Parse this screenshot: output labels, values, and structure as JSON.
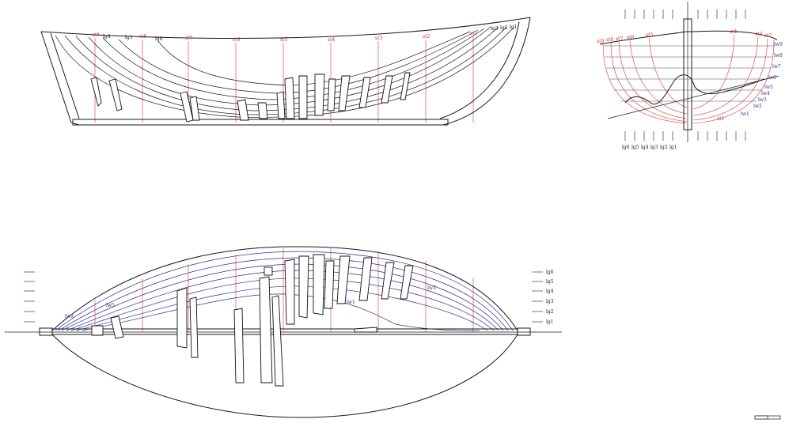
{
  "profile_view": {
    "station_labels": [
      "st9",
      "st8",
      "st7",
      "st6",
      "st5",
      "st4",
      "st3",
      "st2",
      "st1"
    ],
    "waterline_labels": [
      "lg4",
      "lg5",
      "lg6",
      "lg3",
      "lg2",
      "lg1"
    ]
  },
  "body_plan": {
    "station_labels": [
      "st9",
      "st8",
      "st7",
      "st6",
      "st5",
      "st4",
      "st3",
      "st2",
      "st1"
    ],
    "waterline_labels_right": [
      "lw9",
      "lw8",
      "lw7",
      "lw6",
      "lw5",
      "lw4",
      "lw3",
      "lw2",
      "lw1"
    ],
    "bottom_labels": [
      "lg6",
      "lg5",
      "lg4",
      "lg3",
      "lg2",
      "lg1"
    ]
  },
  "half_breadth_view": {
    "waterline_labels": [
      "lg6",
      "lg5",
      "lg4",
      "lg3",
      "lg2",
      "lg1"
    ],
    "inner_labels": [
      "lw9",
      "lw5",
      "lw1",
      "lw3"
    ]
  },
  "colors": {
    "hull": "#1a1a1a",
    "stations": "#e03030",
    "waterlines": "#2b2f8f"
  },
  "icons": [
    "scale-bar-icon"
  ]
}
